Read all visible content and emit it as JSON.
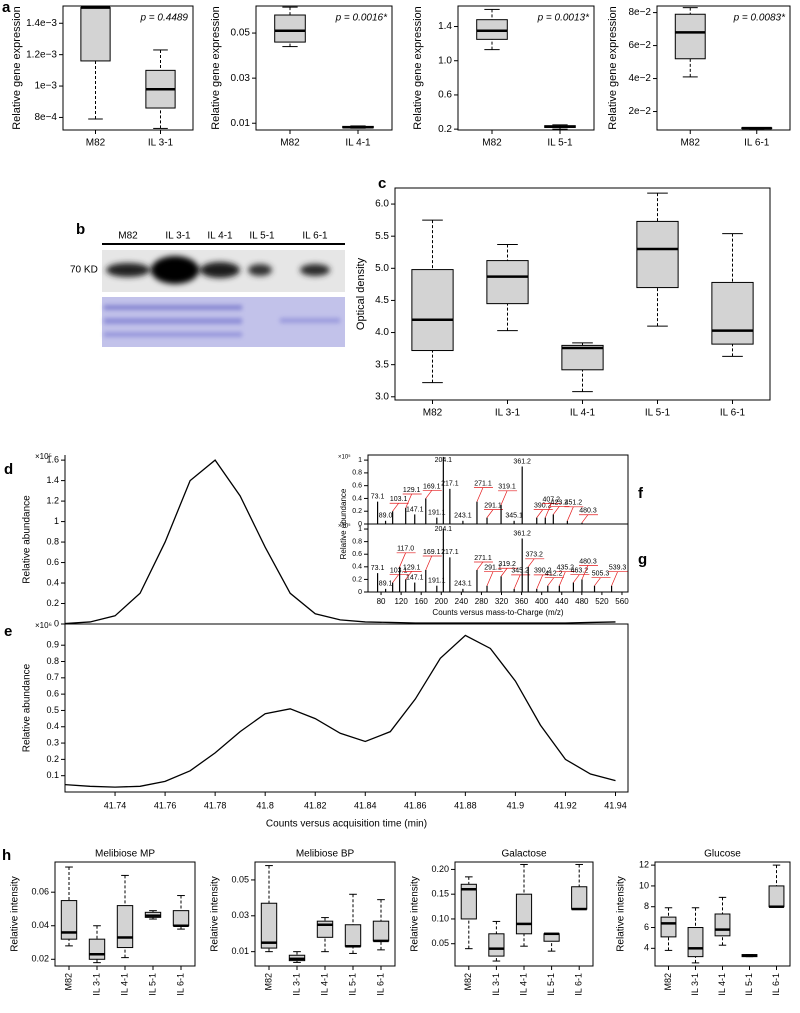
{
  "chart_data": [
    {
      "type": "box",
      "panel": "a",
      "ylabel": "Relative gene expression",
      "annotation": "p = 0.4489",
      "color": "#d3d3d3",
      "categories": [
        "M82",
        "IL 3-1"
      ],
      "stats": [
        [
          0.00079,
          0.00116,
          0.0015,
          0.0015,
          0.0015
        ],
        [
          0.00073,
          0.00086,
          0.00098,
          0.0011,
          0.00123
        ]
      ],
      "ylim": [
        0.00072,
        0.00151
      ],
      "yticks": [
        {
          "value": 0.0008,
          "label": "8e−4"
        },
        {
          "value": 0.001,
          "label": "1e−3"
        },
        {
          "value": 0.0012,
          "label": "1.2e−3"
        },
        {
          "value": 0.0014,
          "label": "1.4e−3"
        }
      ]
    },
    {
      "type": "box",
      "ylabel": "Relative gene expression",
      "annotation": "p = 0.0016*",
      "color": "#d3d3d3",
      "categories": [
        "M82",
        "IL 4-1"
      ],
      "stats": [
        [
          0.044,
          0.046,
          0.051,
          0.058,
          0.0615
        ],
        [
          0.0078,
          0.008,
          0.0082,
          0.0086,
          0.0088
        ]
      ],
      "ylim": [
        0.007,
        0.062
      ],
      "yticks": [
        0.01,
        0.03,
        0.05
      ]
    },
    {
      "type": "box",
      "ylabel": "Relative gene expression",
      "annotation": "p = 0.0013*",
      "color": "#d3d3d3",
      "categories": [
        "M82",
        "IL 5-1"
      ],
      "stats": [
        [
          1.13,
          1.25,
          1.35,
          1.48,
          1.6
        ],
        [
          0.2,
          0.22,
          0.23,
          0.24,
          0.25
        ]
      ],
      "ylim": [
        0.19,
        1.64
      ],
      "yticks": [
        0.2,
        0.6,
        {
          "value": 1.0,
          "label": "1.0"
        },
        1.4
      ]
    },
    {
      "type": "box",
      "ylabel": "Relative gene expression",
      "annotation": "p = 0.0083*",
      "color": "#d3d3d3",
      "categories": [
        "M82",
        "IL 6-1"
      ],
      "stats": [
        [
          0.041,
          0.052,
          0.068,
          0.079,
          0.083
        ],
        [
          0.0095,
          0.0097,
          0.0099,
          0.0101,
          0.0103
        ]
      ],
      "ylim": [
        0.0088,
        0.084
      ],
      "yticks": [
        {
          "value": 0.02,
          "label": "2e−2"
        },
        {
          "value": 0.04,
          "label": "4e−2"
        },
        {
          "value": 0.06,
          "label": "6e−2"
        },
        {
          "value": 0.08,
          "label": "8e−2"
        }
      ]
    },
    {
      "type": "box",
      "panel": "c",
      "ylabel": "Optical density",
      "color": "#d3d3d3",
      "categories": [
        "M82",
        "IL 3-1",
        "IL 4-1",
        "IL 5-1",
        "IL 6-1"
      ],
      "stats": [
        [
          3.22,
          3.72,
          4.2,
          4.98,
          5.75
        ],
        [
          4.03,
          4.45,
          4.87,
          5.12,
          5.37
        ],
        [
          3.08,
          3.42,
          3.76,
          3.8,
          3.84
        ],
        [
          4.1,
          4.7,
          5.3,
          5.73,
          6.17
        ],
        [
          3.63,
          3.82,
          4.03,
          4.78,
          5.54
        ]
      ],
      "ylim": [
        2.95,
        6.25
      ],
      "yticks": [
        {
          "value": 3.0,
          "label": "3.0"
        },
        3.5,
        {
          "value": 4.0,
          "label": "4.0"
        },
        4.5,
        {
          "value": 5.0,
          "label": "5.0"
        },
        5.5,
        {
          "value": 6.0,
          "label": "6.0"
        }
      ]
    },
    {
      "type": "line",
      "panel": "d",
      "ylabel": "Relative abundance",
      "y_multiplier": "×10⁵",
      "color": "#000000",
      "x": [
        41.72,
        41.73,
        41.74,
        41.75,
        41.76,
        41.77,
        41.78,
        41.79,
        41.8,
        41.81,
        41.82,
        41.83,
        41.84,
        41.85,
        41.86,
        41.87,
        41.88,
        41.89,
        41.9,
        41.91,
        41.92,
        41.93,
        41.94
      ],
      "values": [
        0.005,
        0.02,
        0.08,
        0.3,
        0.8,
        1.4,
        1.6,
        1.25,
        0.75,
        0.3,
        0.1,
        0.04,
        0.02,
        0.015,
        0.01,
        0.01,
        0.01,
        0.01,
        0.01,
        0.01,
        0.01,
        0.015,
        0.02
      ],
      "xlim": [
        41.72,
        41.945
      ],
      "ylim": [
        0,
        1.65
      ],
      "yticks": [
        0,
        0.2,
        0.4,
        0.6,
        0.8,
        1,
        1.2,
        1.4,
        1.6
      ]
    },
    {
      "type": "line",
      "panel": "e",
      "ylabel": "Relative abundance",
      "y_multiplier": "×10⁶",
      "xlabel": "Counts versus acquisition time (min)",
      "color": "#000000",
      "x": [
        41.72,
        41.73,
        41.74,
        41.75,
        41.76,
        41.77,
        41.78,
        41.79,
        41.8,
        41.81,
        41.82,
        41.83,
        41.84,
        41.85,
        41.86,
        41.87,
        41.88,
        41.89,
        41.9,
        41.91,
        41.92,
        41.93,
        41.94
      ],
      "values": [
        0.045,
        0.035,
        0.03,
        0.035,
        0.065,
        0.13,
        0.24,
        0.37,
        0.48,
        0.51,
        0.45,
        0.36,
        0.31,
        0.37,
        0.57,
        0.82,
        0.96,
        0.88,
        0.68,
        0.41,
        0.2,
        0.11,
        0.07
      ],
      "xlim": [
        41.72,
        41.945
      ],
      "ylim": [
        0,
        1.03
      ],
      "xticks": [
        41.74,
        41.76,
        41.78,
        41.8,
        41.82,
        41.84,
        41.86,
        41.88,
        41.9,
        41.92,
        41.94
      ],
      "yticks": [
        0.1,
        0.2,
        0.3,
        0.4,
        0.5,
        0.6,
        0.7,
        0.8,
        0.9
      ]
    },
    {
      "type": "spectrum",
      "panel": "f",
      "ylabel": "Relative abundance",
      "y_multiplier": "×10⁵",
      "color": "#000000",
      "xlim": [
        54,
        572
      ],
      "ylim": [
        0,
        1.08
      ],
      "yticks": [
        0,
        0.2,
        0.4,
        0.6,
        0.8,
        1
      ],
      "peaks": [
        {
          "x": 73.1,
          "y": 0.35,
          "label": "73.1",
          "label_color": "#000000"
        },
        {
          "x": 89.0,
          "y": 0.05,
          "label": "89.0",
          "label_color": "#000000"
        },
        {
          "x": 103.1,
          "y": 0.2,
          "label": "103.1",
          "label_color": "#e41a1c"
        },
        {
          "x": 129.1,
          "y": 0.25,
          "label": "129.1",
          "label_color": "#e41a1c"
        },
        {
          "x": 147.1,
          "y": 0.15,
          "label": "147.1",
          "label_color": "#000000"
        },
        {
          "x": 169.1,
          "y": 0.4,
          "label": "169.1",
          "label_color": "#e41a1c"
        },
        {
          "x": 191.1,
          "y": 0.1,
          "label": "191.1",
          "label_color": "#000000"
        },
        {
          "x": 204.1,
          "y": 1.05,
          "label": "204.1",
          "label_color": "#000000"
        },
        {
          "x": 217.1,
          "y": 0.55,
          "label": "217.1",
          "label_color": "#000000"
        },
        {
          "x": 243.1,
          "y": 0.05,
          "label": "243.1",
          "label_color": "#000000"
        },
        {
          "x": 271.1,
          "y": 0.35,
          "label": "271.1",
          "label_color": "#e41a1c"
        },
        {
          "x": 291.1,
          "y": 0.1,
          "label": "291.1",
          "label_color": "#e41a1c"
        },
        {
          "x": 319.1,
          "y": 0.3,
          "label": "319.1",
          "label_color": "#e41a1c"
        },
        {
          "x": 345.1,
          "y": 0.05,
          "label": "345.1",
          "label_color": "#000000"
        },
        {
          "x": 361.2,
          "y": 0.9,
          "label": "361.2",
          "label_color": "#000000"
        },
        {
          "x": 390.2,
          "y": 0.1,
          "label": "390.2",
          "label_color": "#e41a1c"
        },
        {
          "x": 407.2,
          "y": 0.1,
          "label": "407.2",
          "label_color": "#e41a1c"
        },
        {
          "x": 423.2,
          "y": 0.15,
          "label": "423.2",
          "label_color": "#e41a1c"
        },
        {
          "x": 451.2,
          "y": 0.05,
          "label": "451.2",
          "label_color": "#e41a1c"
        },
        {
          "x": 480.3,
          "y": 0.02,
          "label": "480.3",
          "label_color": "#e41a1c"
        }
      ]
    },
    {
      "type": "spectrum",
      "panel": "g",
      "y_multiplier": "×10⁵",
      "xlabel": "Counts versus mass-to-Charge (m/z)",
      "color": "#000000",
      "xlim": [
        54,
        572
      ],
      "ylim": [
        0,
        1.08
      ],
      "yticks": [
        0,
        0.2,
        0.4,
        0.6,
        0.8,
        1
      ],
      "xticks": [
        80,
        120,
        160,
        200,
        240,
        280,
        320,
        360,
        400,
        440,
        480,
        520,
        560
      ],
      "peaks": [
        {
          "x": 73.1,
          "y": 0.3,
          "label": "73.1",
          "label_color": "#000000"
        },
        {
          "x": 89.1,
          "y": 0.05,
          "label": "89.1",
          "label_color": "#000000"
        },
        {
          "x": 103.1,
          "y": 0.15,
          "label": "103.1",
          "label_color": "#e41a1c"
        },
        {
          "x": 117.0,
          "y": 0.4,
          "label": "117.0",
          "label_color": "#e41a1c"
        },
        {
          "x": 129.1,
          "y": 0.2,
          "label": "129.1",
          "label_color": "#e41a1c"
        },
        {
          "x": 147.1,
          "y": 0.15,
          "label": "147.1",
          "label_color": "#000000"
        },
        {
          "x": 169.1,
          "y": 0.35,
          "label": "169.1",
          "label_color": "#e41a1c"
        },
        {
          "x": 191.1,
          "y": 0.1,
          "label": "191.1",
          "label_color": "#000000"
        },
        {
          "x": 204.1,
          "y": 1.0,
          "label": "204.1",
          "label_color": "#000000"
        },
        {
          "x": 217.1,
          "y": 0.55,
          "label": "217.1",
          "label_color": "#000000"
        },
        {
          "x": 243.1,
          "y": 0.05,
          "label": "243.1",
          "label_color": "#000000"
        },
        {
          "x": 271.1,
          "y": 0.35,
          "label": "271.1",
          "label_color": "#e41a1c"
        },
        {
          "x": 291.1,
          "y": 0.1,
          "label": "291.1",
          "label_color": "#e41a1c"
        },
        {
          "x": 319.2,
          "y": 0.25,
          "label": "319.2",
          "label_color": "#e41a1c"
        },
        {
          "x": 345.2,
          "y": 0.05,
          "label": "345.2",
          "label_color": "#e41a1c"
        },
        {
          "x": 361.2,
          "y": 0.85,
          "label": "361.2",
          "label_color": "#000000"
        },
        {
          "x": 373.2,
          "y": 0.4,
          "label": "373.2",
          "label_color": "#e41a1c"
        },
        {
          "x": 390.2,
          "y": 0.05,
          "label": "390.2",
          "label_color": "#e41a1c"
        },
        {
          "x": 412.2,
          "y": 0.1,
          "label": "412.2",
          "label_color": "#e41a1c"
        },
        {
          "x": 435.2,
          "y": 0.1,
          "label": "435.2",
          "label_color": "#e41a1c"
        },
        {
          "x": 463.2,
          "y": 0.15,
          "label": "463.2",
          "label_color": "#e41a1c"
        },
        {
          "x": 480.3,
          "y": 0.2,
          "label": "480.3",
          "label_color": "#e41a1c"
        },
        {
          "x": 505.3,
          "y": 0.1,
          "label": "505.3",
          "label_color": "#e41a1c"
        },
        {
          "x": 539.3,
          "y": 0.1,
          "label": "539.3",
          "label_color": "#e41a1c"
        }
      ]
    },
    {
      "type": "box",
      "panel": "h",
      "title": "Melibiose MP",
      "ylabel": "Relative intensity",
      "color": "#d3d3d3",
      "categories": [
        "M82",
        "IL 3-1",
        "IL 4-1",
        "IL 5-1",
        "IL 6-1"
      ],
      "stats": [
        [
          0.028,
          0.032,
          0.036,
          0.055,
          0.075
        ],
        [
          0.018,
          0.02,
          0.023,
          0.032,
          0.04
        ],
        [
          0.021,
          0.027,
          0.033,
          0.052,
          0.07
        ],
        [
          0.044,
          0.045,
          0.046,
          0.048,
          0.049
        ],
        [
          0.038,
          0.04,
          0.04,
          0.049,
          0.058
        ]
      ],
      "ylim": [
        0.016,
        0.078
      ],
      "yticks": [
        0.02,
        0.04,
        0.06
      ]
    },
    {
      "type": "box",
      "title": "Melibiose BP",
      "ylabel": "Relative intensity",
      "color": "#d3d3d3",
      "categories": [
        "M82",
        "IL 3-1",
        "IL 4-1",
        "IL 5-1",
        "IL 6-1"
      ],
      "stats": [
        [
          0.01,
          0.012,
          0.015,
          0.037,
          0.058
        ],
        [
          0.004,
          0.005,
          0.006,
          0.008,
          0.01
        ],
        [
          0.01,
          0.018,
          0.025,
          0.027,
          0.029
        ],
        [
          0.009,
          0.013,
          0.013,
          0.025,
          0.042
        ],
        [
          0.011,
          0.016,
          0.016,
          0.027,
          0.039
        ]
      ],
      "ylim": [
        0.002,
        0.06
      ],
      "yticks": [
        0.01,
        0.03,
        0.05
      ]
    },
    {
      "type": "box",
      "title": "Galactose",
      "ylabel": "Relative intensity",
      "color": "#d3d3d3",
      "categories": [
        "M82",
        "IL 3-1",
        "IL 4-1",
        "IL 5-1",
        "IL 6-1"
      ],
      "stats": [
        [
          0.04,
          0.1,
          0.16,
          0.17,
          0.185
        ],
        [
          0.015,
          0.025,
          0.04,
          0.07,
          0.095
        ],
        [
          0.045,
          0.07,
          0.09,
          0.15,
          0.21
        ],
        [
          0.035,
          0.055,
          0.07,
          0.07,
          0.07
        ],
        [
          0.12,
          0.12,
          0.12,
          0.165,
          0.21
        ]
      ],
      "ylim": [
        0.005,
        0.215
      ],
      "yticks": [
        0.05,
        {
          "value": 0.1,
          "label": "0.10"
        },
        0.15,
        {
          "value": 0.2,
          "label": "0.20"
        }
      ]
    },
    {
      "type": "box",
      "title": "Glucose",
      "ylabel": "Relative intensity",
      "color": "#d3d3d3",
      "categories": [
        "M82",
        "IL 3-1",
        "IL 4-1",
        "IL 5-1",
        "IL 6-1"
      ],
      "stats": [
        [
          3.8,
          5.1,
          6.4,
          7.0,
          7.9
        ],
        [
          2.6,
          3.2,
          4.0,
          6.0,
          7.9
        ],
        [
          4.3,
          5.2,
          5.8,
          7.3,
          8.9
        ],
        [
          3.2,
          3.2,
          3.3,
          3.4,
          3.4
        ],
        [
          8.0,
          8.0,
          8.0,
          10.0,
          12.0
        ]
      ],
      "ylim": [
        2.3,
        12.3
      ],
      "yticks": [
        4,
        6,
        8,
        10,
        12
      ]
    }
  ],
  "blot": {
    "panel": "b",
    "lanes": [
      "M82",
      "IL 3-1",
      "IL 4-1",
      "IL 5-1",
      "IL 6-1"
    ],
    "marker": "70 KD"
  }
}
